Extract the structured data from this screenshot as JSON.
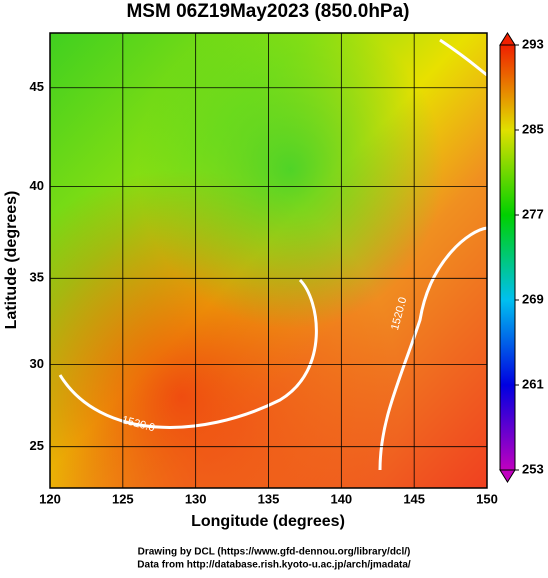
{
  "title": "MSM 06Z19May2023 (850.0hPa)",
  "x_axis": {
    "label": "Longitude (degrees)",
    "lim": [
      120,
      150
    ],
    "ticks": [
      120,
      125,
      130,
      135,
      140,
      145,
      150
    ]
  },
  "y_axis": {
    "label": "Latitude  (degrees)",
    "lim": [
      22.4,
      47.6
    ],
    "ticks": [
      25,
      30,
      35,
      40,
      45
    ],
    "projection": "mercator"
  },
  "colorbar": {
    "lim": [
      253,
      293
    ],
    "ticks": [
      253,
      261,
      269,
      277,
      285,
      293
    ]
  },
  "contour_labels": [
    "1520.0",
    "1520.0"
  ],
  "footer": [
    "Drawing by DCL (https://www.gfd-dennou.org/library/dcl/)",
    "Data from http://database.rish.kyoto-u.ac.jp/arch/jmadata/"
  ]
}
